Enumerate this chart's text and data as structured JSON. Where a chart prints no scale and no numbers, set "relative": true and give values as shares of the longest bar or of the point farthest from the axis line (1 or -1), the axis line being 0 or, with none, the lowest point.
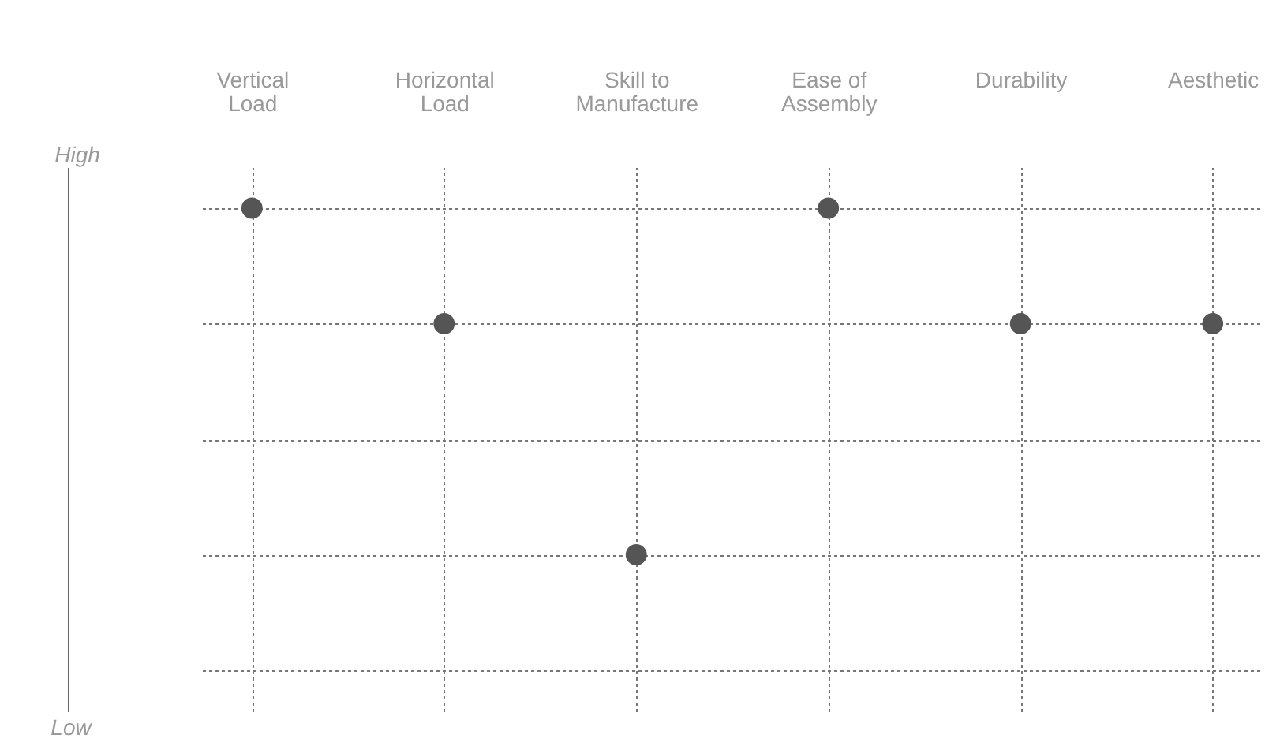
{
  "chart_data": {
    "type": "scatter",
    "relative": true,
    "categories": [
      "Vertical Load",
      "Horizontal Load",
      "Skill to Manufacture",
      "Ease of Assembly",
      "Durability",
      "Aesthetic"
    ],
    "series": [
      {
        "color": "#555555",
        "values": [
          1,
          0.75,
          0.25,
          1,
          0.75,
          0.75
        ]
      }
    ],
    "annotations": [
      "High",
      "Low"
    ],
    "grid": true,
    "marker": "circle",
    "legend": false,
    "tick_labels": "x"
  }
}
